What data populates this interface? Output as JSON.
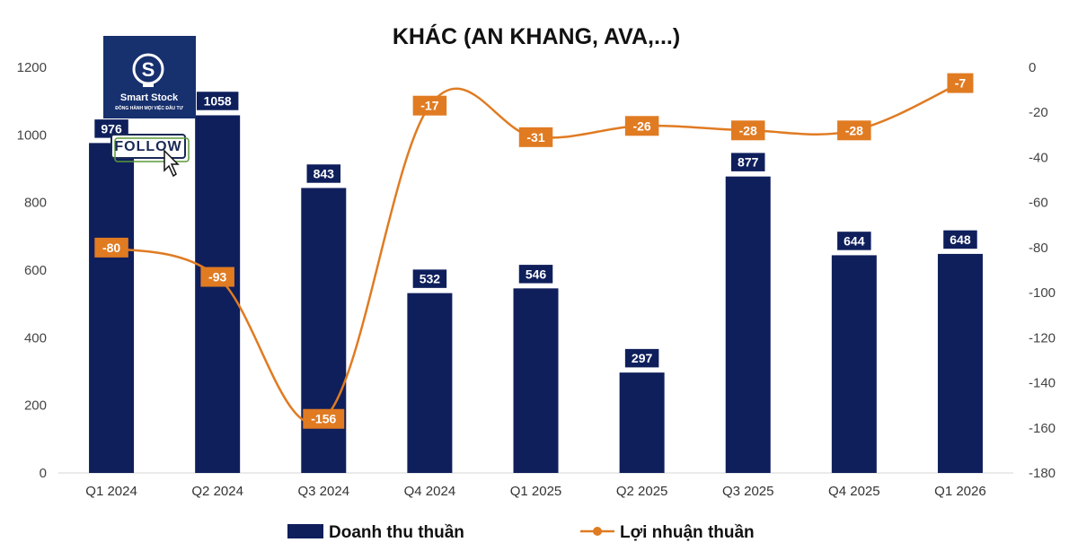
{
  "logo": {
    "brand": "Smart Stock",
    "tagline": "ĐỒNG HÀNH MỌI VIỆC ĐẦU TƯ",
    "follow_label": "FOLLOW"
  },
  "chart_data": {
    "type": "bar",
    "title": "KHÁC (AN KHANG, AVA,...)",
    "categories": [
      "Q1 2024",
      "Q2 2024",
      "Q3 2024",
      "Q4 2024",
      "Q1 2025",
      "Q2 2025",
      "Q3 2025",
      "Q4 2025",
      "Q1 2026"
    ],
    "series": [
      {
        "name": "Doanh thu thuần",
        "type": "bar",
        "axis": "left",
        "color": "#0f1f5c",
        "values": [
          976,
          1058,
          843,
          532,
          546,
          297,
          877,
          644,
          648
        ],
        "labels": [
          "976",
          "1058",
          "843",
          "532",
          "546",
          "297",
          "877",
          "644",
          "648"
        ]
      },
      {
        "name": "Lợi nhuận thuần",
        "type": "line",
        "axis": "right",
        "color": "#e07b22",
        "values": [
          -80,
          -93,
          -156,
          -17,
          -31,
          -26,
          -28,
          -28,
          -7
        ],
        "labels": [
          "-80",
          "-93",
          "-156",
          "-17",
          "-31",
          "-26",
          "-28",
          "-28",
          "-7"
        ]
      }
    ],
    "y_left": {
      "min": 0,
      "max": 1200,
      "ticks": [
        "0",
        "200",
        "400",
        "600",
        "800",
        "1000",
        "1200"
      ]
    },
    "y_right": {
      "min": -180,
      "max": 0,
      "ticks": [
        "-180",
        "-160",
        "-140",
        "-120",
        "-100",
        "-80",
        "-60",
        "-40",
        "-20",
        "0"
      ]
    },
    "grid": false,
    "legend_position": "bottom"
  }
}
